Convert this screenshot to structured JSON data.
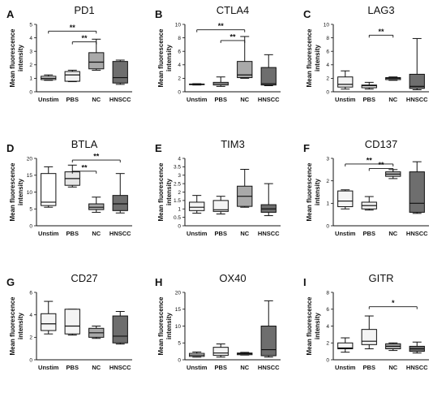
{
  "chart_data": [
    {
      "type": "box",
      "letter": "A",
      "title": "PD1",
      "ylabel": "Mean fluorescence intensity",
      "ylim": [
        0,
        5
      ],
      "yticks": [
        0,
        1,
        2,
        3,
        4,
        5
      ],
      "categories": [
        "Unstim",
        "PBS",
        "NC",
        "HNSCC"
      ],
      "fills": [
        "#f4f4f4",
        "#f4f4f4",
        "#a9a9a9",
        "#6e6e6e"
      ],
      "boxes": [
        {
          "min": 0.85,
          "q1": 0.9,
          "median": 1.0,
          "q3": 1.15,
          "max": 1.25
        },
        {
          "min": 0.75,
          "q1": 0.78,
          "median": 1.25,
          "q3": 1.5,
          "max": 1.6
        },
        {
          "min": 1.6,
          "q1": 1.7,
          "median": 2.2,
          "q3": 2.9,
          "max": 3.9
        },
        {
          "min": 0.55,
          "q1": 0.65,
          "median": 1.05,
          "q3": 2.25,
          "max": 2.35
        }
      ],
      "significance": [
        {
          "from": 0,
          "to": 2,
          "y": 4.5,
          "label": "**"
        },
        {
          "from": 1,
          "to": 2,
          "y": 3.7,
          "label": "**"
        }
      ]
    },
    {
      "type": "box",
      "letter": "B",
      "title": "CTLA4",
      "ylabel": "Mean fluorescence intensity",
      "ylim": [
        0,
        10
      ],
      "yticks": [
        0,
        2,
        4,
        6,
        8,
        10
      ],
      "categories": [
        "Unstim",
        "PBS",
        "NC",
        "HNSCC"
      ],
      "fills": [
        "#f4f4f4",
        "#f4f4f4",
        "#a9a9a9",
        "#6e6e6e"
      ],
      "boxes": [
        {
          "min": 1.0,
          "q1": 1.05,
          "median": 1.1,
          "q3": 1.15,
          "max": 1.2
        },
        {
          "min": 0.8,
          "q1": 1.0,
          "median": 1.2,
          "q3": 1.4,
          "max": 2.2
        },
        {
          "min": 2.0,
          "q1": 2.1,
          "median": 2.5,
          "q3": 4.5,
          "max": 8.2
        },
        {
          "min": 0.9,
          "q1": 1.0,
          "median": 1.2,
          "q3": 3.6,
          "max": 5.5
        }
      ],
      "significance": [
        {
          "from": 0,
          "to": 2,
          "y": 9.2,
          "label": "**"
        },
        {
          "from": 1,
          "to": 2,
          "y": 7.6,
          "label": "**"
        }
      ]
    },
    {
      "type": "box",
      "letter": "C",
      "title": "LAG3",
      "ylabel": "Mean fluorescence intensity",
      "ylim": [
        0,
        10
      ],
      "yticks": [
        0,
        2,
        4,
        6,
        8,
        10
      ],
      "categories": [
        "Unstim",
        "PBS",
        "NC",
        "HNSCC"
      ],
      "fills": [
        "#f4f4f4",
        "#f4f4f4",
        "#a9a9a9",
        "#6e6e6e"
      ],
      "boxes": [
        {
          "min": 0.4,
          "q1": 0.7,
          "median": 1.1,
          "q3": 2.2,
          "max": 3.1
        },
        {
          "min": 0.4,
          "q1": 0.6,
          "median": 0.9,
          "q3": 1.0,
          "max": 1.4
        },
        {
          "min": 1.7,
          "q1": 1.8,
          "median": 2.0,
          "q3": 2.1,
          "max": 2.2
        },
        {
          "min": 0.3,
          "q1": 0.5,
          "median": 0.8,
          "q3": 2.6,
          "max": 7.9
        }
      ],
      "significance": [
        {
          "from": 1,
          "to": 2,
          "y": 8.4,
          "label": "**"
        }
      ]
    },
    {
      "type": "box",
      "letter": "D",
      "title": "BTLA",
      "ylabel": "Mean fluorescence intensity",
      "ylim": [
        0,
        20
      ],
      "yticks": [
        0,
        5,
        10,
        15,
        20
      ],
      "categories": [
        "Unstim",
        "PBS",
        "NC",
        "HNSCC"
      ],
      "fills": [
        "#ffffff",
        "#e6e6e6",
        "#a9a9a9",
        "#6e6e6e"
      ],
      "boxes": [
        {
          "min": 5.5,
          "q1": 6.0,
          "median": 7.0,
          "q3": 15.5,
          "max": 17.5
        },
        {
          "min": 11.5,
          "q1": 12.0,
          "median": 14.0,
          "q3": 16.0,
          "max": 18.0
        },
        {
          "min": 4.0,
          "q1": 4.8,
          "median": 5.5,
          "q3": 6.5,
          "max": 8.5
        },
        {
          "min": 3.8,
          "q1": 4.5,
          "median": 6.5,
          "q3": 9.0,
          "max": 15.5
        }
      ],
      "significance": [
        {
          "from": 1,
          "to": 3,
          "y": 19.5,
          "label": "**"
        },
        {
          "from": 1,
          "to": 2,
          "y": 16.2,
          "label": "**"
        }
      ]
    },
    {
      "type": "box",
      "letter": "E",
      "title": "TIM3",
      "ylabel": "Mean fluorescence intensity",
      "ylim": [
        0,
        4
      ],
      "yticks": [
        0,
        0.5,
        1,
        1.5,
        2,
        2.5,
        3,
        3.5,
        4
      ],
      "categories": [
        "Unstim",
        "PBS",
        "NC",
        "HNSCC"
      ],
      "fills": [
        "#f4f4f4",
        "#f4f4f4",
        "#a9a9a9",
        "#6e6e6e"
      ],
      "boxes": [
        {
          "min": 0.75,
          "q1": 0.9,
          "median": 1.1,
          "q3": 1.4,
          "max": 1.8
        },
        {
          "min": 0.7,
          "q1": 0.85,
          "median": 0.95,
          "q3": 1.5,
          "max": 1.75
        },
        {
          "min": 1.1,
          "q1": 1.15,
          "median": 1.75,
          "q3": 2.35,
          "max": 3.35
        },
        {
          "min": 0.6,
          "q1": 0.8,
          "median": 1.0,
          "q3": 1.25,
          "max": 2.5
        }
      ],
      "significance": []
    },
    {
      "type": "box",
      "letter": "F",
      "title": "CD137",
      "ylabel": "Mean fluorescence intensity",
      "ylim": [
        0,
        3
      ],
      "yticks": [
        0,
        1,
        2,
        3
      ],
      "categories": [
        "Unstim",
        "PBS",
        "NC",
        "HNSCC"
      ],
      "fills": [
        "#f4f4f4",
        "#f4f4f4",
        "#bdbdbd",
        "#6e6e6e"
      ],
      "boxes": [
        {
          "min": 0.75,
          "q1": 0.85,
          "median": 1.1,
          "q3": 1.55,
          "max": 1.6
        },
        {
          "min": 0.7,
          "q1": 0.75,
          "median": 0.9,
          "q3": 1.05,
          "max": 1.3
        },
        {
          "min": 2.1,
          "q1": 2.2,
          "median": 2.3,
          "q3": 2.4,
          "max": 2.5
        },
        {
          "min": 0.55,
          "q1": 0.6,
          "median": 1.0,
          "q3": 2.4,
          "max": 2.85
        }
      ],
      "significance": [
        {
          "from": 0,
          "to": 2,
          "y": 2.75,
          "label": "**"
        },
        {
          "from": 1,
          "to": 2,
          "y": 2.55,
          "label": "**"
        }
      ]
    },
    {
      "type": "box",
      "letter": "G",
      "title": "CD27",
      "ylabel": "Mean fluorescence intensity",
      "ylim": [
        0,
        6
      ],
      "yticks": [
        0,
        2,
        4,
        6
      ],
      "categories": [
        "Unstim",
        "PBS",
        "NC",
        "HNSCC"
      ],
      "fills": [
        "#f4f4f4",
        "#f4f4f4",
        "#a9a9a9",
        "#6e6e6e"
      ],
      "boxes": [
        {
          "min": 2.3,
          "q1": 2.6,
          "median": 3.2,
          "q3": 4.1,
          "max": 5.2
        },
        {
          "min": 2.2,
          "q1": 2.3,
          "median": 3.0,
          "q3": 4.5,
          "max": 4.5
        },
        {
          "min": 1.9,
          "q1": 2.0,
          "median": 2.4,
          "q3": 2.8,
          "max": 3.0
        },
        {
          "min": 1.4,
          "q1": 1.5,
          "median": 2.1,
          "q3": 3.9,
          "max": 4.3
        }
      ],
      "significance": []
    },
    {
      "type": "box",
      "letter": "H",
      "title": "OX40",
      "ylabel": "Mean fluorescence intensity",
      "ylim": [
        0,
        20
      ],
      "yticks": [
        0,
        5,
        10,
        15,
        20
      ],
      "categories": [
        "Unstim",
        "PBS",
        "NC",
        "HNSCC"
      ],
      "fills": [
        "#f4f4f4",
        "#f4f4f4",
        "#a9a9a9",
        "#6e6e6e"
      ],
      "boxes": [
        {
          "min": 0.8,
          "q1": 1.0,
          "median": 1.4,
          "q3": 1.9,
          "max": 2.3
        },
        {
          "min": 0.8,
          "q1": 1.3,
          "median": 2.0,
          "q3": 3.7,
          "max": 4.7
        },
        {
          "min": 1.4,
          "q1": 1.5,
          "median": 1.8,
          "q3": 2.0,
          "max": 2.2
        },
        {
          "min": 0.8,
          "q1": 1.2,
          "median": 3.0,
          "q3": 10.0,
          "max": 17.5
        }
      ],
      "significance": []
    },
    {
      "type": "box",
      "letter": "I",
      "title": "GITR",
      "ylabel": "Mean fluorescence intensity",
      "ylim": [
        0,
        8
      ],
      "yticks": [
        0,
        2,
        4,
        6,
        8
      ],
      "categories": [
        "Unstim",
        "PBS",
        "NC",
        "HNSCC"
      ],
      "fills": [
        "#f4f4f4",
        "#f4f4f4",
        "#a9a9a9",
        "#6e6e6e"
      ],
      "boxes": [
        {
          "min": 0.9,
          "q1": 1.3,
          "median": 1.4,
          "q3": 2.0,
          "max": 2.6
        },
        {
          "min": 1.3,
          "q1": 1.8,
          "median": 2.2,
          "q3": 3.6,
          "max": 5.2
        },
        {
          "min": 1.1,
          "q1": 1.3,
          "median": 1.6,
          "q3": 1.9,
          "max": 2.0
        },
        {
          "min": 0.8,
          "q1": 1.0,
          "median": 1.3,
          "q3": 1.6,
          "max": 2.1
        }
      ],
      "significance": [
        {
          "from": 1,
          "to": 3,
          "y": 6.3,
          "label": "*"
        }
      ]
    }
  ]
}
